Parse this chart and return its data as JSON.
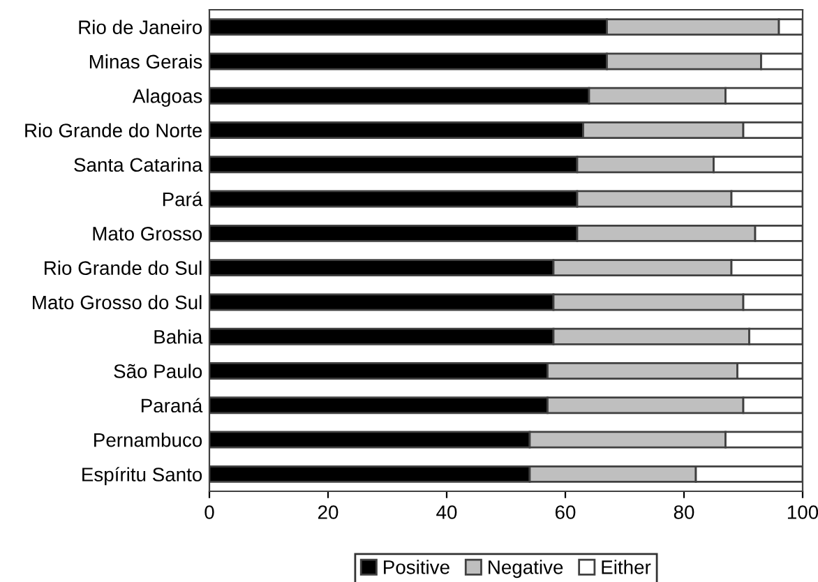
{
  "chart_data": {
    "type": "bar",
    "orientation": "horizontal",
    "stacked": true,
    "categories": [
      "Rio de Janeiro",
      "Minas Gerais",
      "Alagoas",
      "Rio Grande do Norte",
      "Santa Catarina",
      "Pará",
      "Mato Grosso",
      "Rio Grande do Sul",
      "Mato Grosso do Sul",
      "Bahia",
      "São Paulo",
      "Paraná",
      "Pernambuco",
      "Espíritu Santo"
    ],
    "series": [
      {
        "name": "Positive",
        "color": "#000000",
        "values": [
          67,
          67,
          64,
          63,
          62,
          62,
          62,
          58,
          58,
          58,
          57,
          57,
          54,
          54
        ]
      },
      {
        "name": "Negative",
        "color": "#bfbfbf",
        "values": [
          29,
          26,
          23,
          27,
          23,
          26,
          30,
          30,
          32,
          33,
          32,
          33,
          33,
          28
        ]
      },
      {
        "name": "Either",
        "color": "#ffffff",
        "values": [
          4,
          7,
          13,
          10,
          15,
          12,
          8,
          12,
          10,
          9,
          11,
          10,
          13,
          18
        ]
      }
    ],
    "xlim": [
      0,
      100
    ],
    "xticks": [
      0,
      20,
      40,
      60,
      80,
      100
    ],
    "grid": false,
    "legend": "bottom"
  }
}
